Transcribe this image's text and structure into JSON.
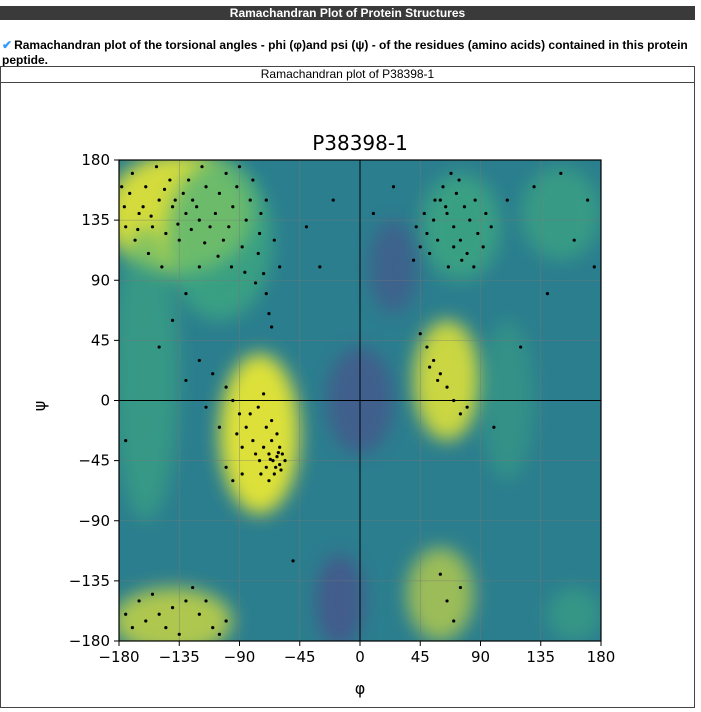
{
  "header": {
    "banner_title": "Ramachandran Plot of Protein Structures"
  },
  "description": {
    "check_icon": "checkmark-icon",
    "text": "Ramachandran plot of the torsional angles - phi (φ)and psi (ψ) - of the residues (amino acids) contained in this protein peptide."
  },
  "figure": {
    "caption": "Ramachandran plot of P38398-1"
  },
  "colors": {
    "banner_bg": "#3a3a3a",
    "check": "#3399ff",
    "high_density": "#e6e635",
    "mid_density": "#3fae7f",
    "low_density": "#2b7e8e",
    "very_low_density": "#5a3b8a",
    "points": "#000000"
  },
  "chart_data": {
    "type": "scatter",
    "title": "P38398-1",
    "xlabel": "φ",
    "ylabel": "ψ",
    "xlim": [
      -180,
      180
    ],
    "ylim": [
      -180,
      180
    ],
    "xticks": [
      -180,
      -135,
      -90,
      -45,
      0,
      45,
      90,
      135,
      180
    ],
    "yticks": [
      180,
      135,
      90,
      45,
      0,
      -45,
      -90,
      -135,
      -180
    ],
    "grid": true,
    "background": "density contour map (viridis)",
    "series": [
      {
        "points": [
          [
            -170,
            170
          ],
          [
            -160,
            160
          ],
          [
            -150,
            150
          ],
          [
            -140,
            145
          ],
          [
            -130,
            140
          ],
          [
            -120,
            135
          ],
          [
            -165,
            140
          ],
          [
            -155,
            130
          ],
          [
            -145,
            125
          ],
          [
            -135,
            120
          ],
          [
            -125,
            150
          ],
          [
            -115,
            160
          ],
          [
            -105,
            155
          ],
          [
            -95,
            145
          ],
          [
            -85,
            135
          ],
          [
            -75,
            125
          ],
          [
            -70,
            150
          ],
          [
            -80,
            165
          ],
          [
            -90,
            175
          ],
          [
            -100,
            170
          ],
          [
            -175,
            130
          ],
          [
            -168,
            120
          ],
          [
            -158,
            110
          ],
          [
            -148,
            100
          ],
          [
            -138,
            150
          ],
          [
            -128,
            165
          ],
          [
            -118,
            175
          ],
          [
            -108,
            140
          ],
          [
            -98,
            130
          ],
          [
            -88,
            115
          ],
          [
            -172,
            155
          ],
          [
            -162,
            145
          ],
          [
            -152,
            175
          ],
          [
            -142,
            165
          ],
          [
            -132,
            155
          ],
          [
            -122,
            145
          ],
          [
            -112,
            130
          ],
          [
            -102,
            120
          ],
          [
            -92,
            160
          ],
          [
            -82,
            150
          ],
          [
            -76,
            110
          ],
          [
            -72,
            95
          ],
          [
            -70,
            80
          ],
          [
            -68,
            65
          ],
          [
            -66,
            55
          ],
          [
            -74,
            140
          ],
          [
            -64,
            120
          ],
          [
            -60,
            100
          ],
          [
            -178,
            160
          ],
          [
            -176,
            145
          ],
          [
            -166,
            128
          ],
          [
            -156,
            138
          ],
          [
            -146,
            158
          ],
          [
            -136,
            132
          ],
          [
            -126,
            128
          ],
          [
            -116,
            118
          ],
          [
            -106,
            108
          ],
          [
            -96,
            100
          ],
          [
            -86,
            96
          ],
          [
            -78,
            88
          ],
          [
            -68,
            -40
          ],
          [
            -65,
            -45
          ],
          [
            -62,
            -42
          ],
          [
            -60,
            -48
          ],
          [
            -58,
            -40
          ],
          [
            -70,
            -50
          ],
          [
            -72,
            -35
          ],
          [
            -66,
            -30
          ],
          [
            -64,
            -55
          ],
          [
            -60,
            -35
          ],
          [
            -75,
            -45
          ],
          [
            -78,
            -40
          ],
          [
            -74,
            -55
          ],
          [
            -68,
            -60
          ],
          [
            -62,
            -25
          ],
          [
            -56,
            -45
          ],
          [
            -80,
            -30
          ],
          [
            -85,
            -20
          ],
          [
            -90,
            -10
          ],
          [
            -95,
            0
          ],
          [
            -100,
            10
          ],
          [
            -110,
            20
          ],
          [
            -88,
            -35
          ],
          [
            -92,
            -25
          ],
          [
            -70,
            -20
          ],
          [
            -66,
            -15
          ],
          [
            -63,
            -50
          ],
          [
            -67,
            -44
          ],
          [
            -61,
            -39
          ],
          [
            -59,
            -52
          ],
          [
            -120,
            30
          ],
          [
            -130,
            15
          ],
          [
            -115,
            -5
          ],
          [
            -105,
            -20
          ],
          [
            -100,
            -50
          ],
          [
            -95,
            -60
          ],
          [
            -82,
            -10
          ],
          [
            -76,
            -5
          ],
          [
            -72,
            5
          ],
          [
            -88,
            -55
          ],
          [
            60,
            150
          ],
          [
            65,
            140
          ],
          [
            70,
            130
          ],
          [
            75,
            120
          ],
          [
            80,
            110
          ],
          [
            85,
            100
          ],
          [
            55,
            135
          ],
          [
            50,
            125
          ],
          [
            45,
            115
          ],
          [
            40,
            105
          ],
          [
            62,
            160
          ],
          [
            68,
            170
          ],
          [
            72,
            155
          ],
          [
            78,
            145
          ],
          [
            82,
            135
          ],
          [
            88,
            125
          ],
          [
            92,
            115
          ],
          [
            58,
            120
          ],
          [
            52,
            110
          ],
          [
            66,
            100
          ],
          [
            74,
            165
          ],
          [
            64,
            145
          ],
          [
            56,
            150
          ],
          [
            48,
            140
          ],
          [
            42,
            130
          ],
          [
            86,
            150
          ],
          [
            94,
            140
          ],
          [
            98,
            130
          ],
          [
            70,
            115
          ],
          [
            76,
            105
          ],
          [
            50,
            40
          ],
          [
            55,
            30
          ],
          [
            60,
            20
          ],
          [
            65,
            10
          ],
          [
            70,
            0
          ],
          [
            75,
            -10
          ],
          [
            45,
            50
          ],
          [
            52,
            25
          ],
          [
            58,
            15
          ],
          [
            80,
            -5
          ],
          [
            -170,
            -170
          ],
          [
            -160,
            -165
          ],
          [
            -150,
            -160
          ],
          [
            -140,
            -155
          ],
          [
            -130,
            -150
          ],
          [
            -120,
            -160
          ],
          [
            -110,
            -170
          ],
          [
            -100,
            -165
          ],
          [
            -165,
            -150
          ],
          [
            -145,
            -170
          ],
          [
            -135,
            -175
          ],
          [
            -125,
            -140
          ],
          [
            -115,
            -150
          ],
          [
            -105,
            -175
          ],
          [
            -155,
            -145
          ],
          [
            -175,
            -160
          ],
          [
            60,
            -130
          ],
          [
            65,
            -150
          ],
          [
            70,
            -165
          ],
          [
            75,
            -140
          ],
          [
            -120,
            100
          ],
          [
            -130,
            80
          ],
          [
            -140,
            60
          ],
          [
            -150,
            40
          ],
          [
            -175,
            -30
          ],
          [
            -20,
            150
          ],
          [
            10,
            140
          ],
          [
            25,
            160
          ],
          [
            110,
            150
          ],
          [
            130,
            160
          ],
          [
            150,
            170
          ],
          [
            170,
            150
          ],
          [
            160,
            120
          ],
          [
            175,
            100
          ],
          [
            140,
            80
          ],
          [
            120,
            40
          ],
          [
            100,
            -20
          ],
          [
            -40,
            130
          ],
          [
            -30,
            100
          ],
          [
            -50,
            -120
          ]
        ]
      }
    ]
  }
}
